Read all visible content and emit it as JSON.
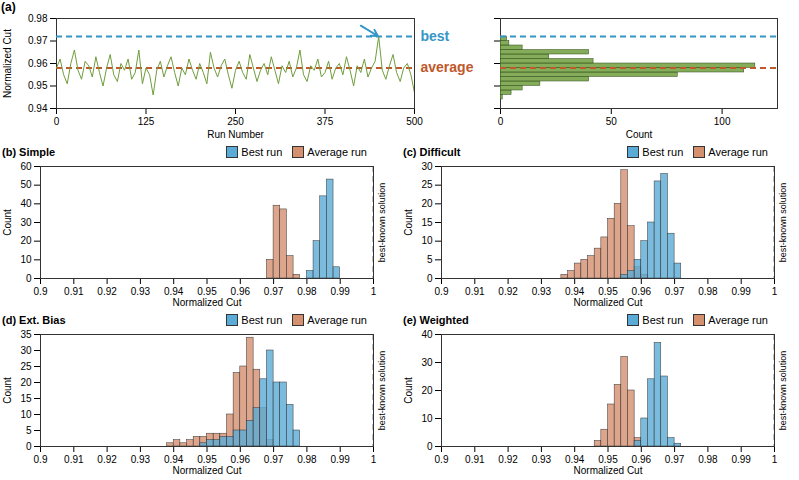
{
  "chart_data": [
    {
      "panel_label": "(a)",
      "type": "line",
      "x_label": "Run Number",
      "y_label": "Normalized Cut",
      "x": [
        0,
        5,
        10,
        15,
        20,
        25,
        30,
        35,
        40,
        45,
        50,
        55,
        60,
        65,
        70,
        75,
        80,
        85,
        90,
        95,
        100,
        105,
        110,
        115,
        120,
        125,
        130,
        135,
        140,
        145,
        150,
        155,
        160,
        165,
        170,
        175,
        180,
        185,
        190,
        195,
        200,
        205,
        210,
        215,
        220,
        225,
        230,
        235,
        240,
        245,
        250,
        255,
        260,
        265,
        270,
        275,
        280,
        285,
        290,
        295,
        300,
        305,
        310,
        315,
        320,
        325,
        330,
        335,
        340,
        345,
        350,
        355,
        360,
        365,
        370,
        375,
        380,
        385,
        390,
        395,
        400,
        405,
        410,
        415,
        420,
        425,
        430,
        435,
        440,
        445,
        450,
        455,
        460,
        465,
        470,
        475,
        480,
        485,
        490,
        495,
        500
      ],
      "values": [
        0.958,
        0.962,
        0.955,
        0.951,
        0.96,
        0.966,
        0.957,
        0.953,
        0.961,
        0.959,
        0.954,
        0.963,
        0.956,
        0.95,
        0.958,
        0.964,
        0.955,
        0.952,
        0.96,
        0.957,
        0.962,
        0.953,
        0.956,
        0.966,
        0.951,
        0.958,
        0.955,
        0.946,
        0.957,
        0.961,
        0.954,
        0.959,
        0.963,
        0.956,
        0.95,
        0.958,
        0.955,
        0.962,
        0.957,
        0.953,
        0.96,
        0.956,
        0.951,
        0.965,
        0.958,
        0.954,
        0.959,
        0.962,
        0.955,
        0.949,
        0.957,
        0.961,
        0.956,
        0.953,
        0.964,
        0.958,
        0.952,
        0.957,
        0.96,
        0.955,
        0.963,
        0.957,
        0.951,
        0.959,
        0.956,
        0.961,
        0.954,
        0.958,
        0.966,
        0.955,
        0.952,
        0.959,
        0.957,
        0.962,
        0.954,
        0.956,
        0.961,
        0.953,
        0.958,
        0.96,
        0.955,
        0.963,
        0.957,
        0.95,
        0.959,
        0.956,
        0.962,
        0.954,
        0.958,
        0.961,
        0.972,
        0.957,
        0.953,
        0.959,
        0.964,
        0.956,
        0.952,
        0.958,
        0.96,
        0.955,
        0.947
      ],
      "color": "#6f9e3c",
      "xlim": [
        0,
        500
      ],
      "xticks": [
        0,
        125,
        250,
        375,
        500
      ],
      "ylim": [
        0.94,
        0.98
      ],
      "yticks": [
        0.94,
        0.95,
        0.96,
        0.97,
        0.98
      ],
      "reference_lines": [
        {
          "label": "best",
          "value": 0.972,
          "color": "#3596c7",
          "line_style": "dashed"
        },
        {
          "label": "average",
          "value": 0.958,
          "color": "#c0582a",
          "line_style": "dashed"
        }
      ]
    },
    {
      "type": "histogram",
      "orientation": "horizontal",
      "x_label": "Count",
      "bins": [
        0.944,
        0.946,
        0.948,
        0.95,
        0.952,
        0.954,
        0.956,
        0.958,
        0.96,
        0.962,
        0.964,
        0.966,
        0.968,
        0.97,
        0.972
      ],
      "values": [
        1,
        5,
        10,
        18,
        40,
        80,
        110,
        115,
        42,
        22,
        40,
        10,
        4,
        3
      ],
      "color": "#6f9e3c",
      "xlim": [
        0,
        125
      ],
      "xticks": [
        0,
        50,
        100
      ],
      "ylim": [
        0.94,
        0.98
      ],
      "yticks": [
        0.94,
        0.95,
        0.96,
        0.97,
        0.98
      ],
      "tick_labels": "x",
      "reference_lines": [
        {
          "value": 0.972,
          "color": "#3596c7",
          "line_style": "dashed"
        },
        {
          "value": 0.958,
          "color": "#c0582a",
          "line_style": "dashed"
        }
      ]
    },
    {
      "panel_label": "(b)",
      "type": "histogram",
      "title": "Simple",
      "x_label": "Normalized Cut",
      "y_label": "Count",
      "bins": [
        0.968,
        0.97,
        0.972,
        0.974,
        0.976,
        0.978,
        0.98,
        0.982,
        0.984,
        0.986,
        0.988,
        0.99,
        0.992
      ],
      "series": [
        {
          "name": "Best run",
          "color": "#5aabd6",
          "values": [
            0,
            0,
            0,
            0,
            0,
            0,
            4,
            20,
            44,
            53,
            6,
            0
          ]
        },
        {
          "name": "Average run",
          "color": "#d4906f",
          "values": [
            10,
            39,
            37,
            12,
            2,
            0,
            0,
            0,
            0,
            0,
            0,
            0
          ]
        }
      ],
      "xlim": [
        0.9,
        1
      ],
      "xticks": [
        0.9,
        0.91,
        0.92,
        0.93,
        0.94,
        0.95,
        0.96,
        0.97,
        0.98,
        0.99,
        1
      ],
      "ylim": [
        0,
        60
      ],
      "yticks": [
        0,
        10,
        20,
        30,
        40,
        50,
        60
      ],
      "legend": "top",
      "reference_lines": [
        {
          "label": "best-known solution",
          "value": 1,
          "color": "#000000",
          "line_style": "dashed"
        }
      ]
    },
    {
      "panel_label": "(c)",
      "type": "histogram",
      "title": "Difficult",
      "x_label": "Normalized Cut",
      "y_label": "Count",
      "bins": [
        0.936,
        0.938,
        0.94,
        0.942,
        0.944,
        0.946,
        0.948,
        0.95,
        0.952,
        0.954,
        0.956,
        0.958,
        0.96,
        0.962,
        0.964,
        0.966,
        0.968,
        0.97,
        0.972,
        0.974
      ],
      "series": [
        {
          "name": "Best run",
          "color": "#5aabd6",
          "values": [
            0,
            0,
            0,
            0,
            0,
            0,
            0,
            0,
            0,
            1,
            2,
            5,
            10,
            15,
            26,
            28,
            12,
            4,
            0
          ]
        },
        {
          "name": "Average run",
          "color": "#d4906f",
          "values": [
            1,
            2,
            4,
            5,
            6,
            8,
            11,
            16,
            20,
            29,
            14,
            3,
            1,
            0,
            0,
            0,
            0,
            0,
            0
          ]
        }
      ],
      "xlim": [
        0.9,
        1
      ],
      "xticks": [
        0.9,
        0.91,
        0.92,
        0.93,
        0.94,
        0.95,
        0.96,
        0.97,
        0.98,
        0.99,
        1
      ],
      "ylim": [
        0,
        30
      ],
      "yticks": [
        0,
        5,
        10,
        15,
        20,
        25,
        30
      ],
      "legend": "top",
      "reference_lines": [
        {
          "label": "best-known solution",
          "value": 1,
          "color": "#000000",
          "line_style": "dashed"
        }
      ]
    },
    {
      "panel_label": "(d)",
      "type": "histogram",
      "title": "Ext. Bias",
      "x_label": "Normalized Cut",
      "y_label": "Count",
      "bins": [
        0.938,
        0.94,
        0.942,
        0.944,
        0.946,
        0.948,
        0.95,
        0.952,
        0.954,
        0.956,
        0.958,
        0.96,
        0.962,
        0.964,
        0.966,
        0.968,
        0.97,
        0.972,
        0.974,
        0.976,
        0.978,
        0.98
      ],
      "series": [
        {
          "name": "Best run",
          "color": "#5aabd6",
          "values": [
            0,
            0,
            0,
            0,
            0,
            1,
            2,
            2,
            3,
            3,
            5,
            5,
            8,
            12,
            21,
            30,
            20,
            20,
            13,
            5,
            0
          ]
        },
        {
          "name": "Average run",
          "color": "#d4906f",
          "values": [
            1,
            2,
            1,
            2,
            3,
            3,
            4,
            4,
            4,
            10,
            23,
            25,
            34,
            24,
            12,
            2,
            0,
            0,
            0,
            0,
            0
          ]
        }
      ],
      "xlim": [
        0.9,
        1
      ],
      "xticks": [
        0.9,
        0.91,
        0.92,
        0.93,
        0.94,
        0.95,
        0.96,
        0.97,
        0.98,
        0.99,
        1
      ],
      "ylim": [
        0,
        35
      ],
      "yticks": [
        0,
        5,
        10,
        15,
        20,
        25,
        30,
        35
      ],
      "legend": "top",
      "reference_lines": [
        {
          "label": "best-known solution",
          "value": 1,
          "color": "#000000",
          "line_style": "dashed"
        }
      ]
    },
    {
      "panel_label": "(e)",
      "type": "histogram",
      "title": "Weighted",
      "x_label": "Normalized Cut",
      "y_label": "Count",
      "bins": [
        0.946,
        0.948,
        0.95,
        0.952,
        0.954,
        0.956,
        0.958,
        0.96,
        0.962,
        0.964,
        0.966,
        0.968,
        0.97,
        0.972,
        0.974,
        0.976
      ],
      "series": [
        {
          "name": "Best run",
          "color": "#5aabd6",
          "values": [
            0,
            0,
            0,
            0,
            0,
            0,
            2,
            10,
            24,
            37,
            25,
            3,
            1,
            0,
            0
          ]
        },
        {
          "name": "Average run",
          "color": "#d4906f",
          "values": [
            2,
            6,
            15,
            22,
            32,
            20,
            3,
            0,
            0,
            0,
            0,
            0,
            0,
            0,
            0
          ]
        }
      ],
      "xlim": [
        0.9,
        1
      ],
      "xticks": [
        0.9,
        0.91,
        0.92,
        0.93,
        0.94,
        0.95,
        0.96,
        0.97,
        0.98,
        0.99,
        1
      ],
      "ylim": [
        0,
        40
      ],
      "yticks": [
        0,
        10,
        20,
        30,
        40
      ],
      "legend": "top",
      "reference_lines": [
        {
          "label": "best-known solution",
          "value": 1,
          "color": "#000000",
          "line_style": "dashed"
        }
      ]
    }
  ]
}
